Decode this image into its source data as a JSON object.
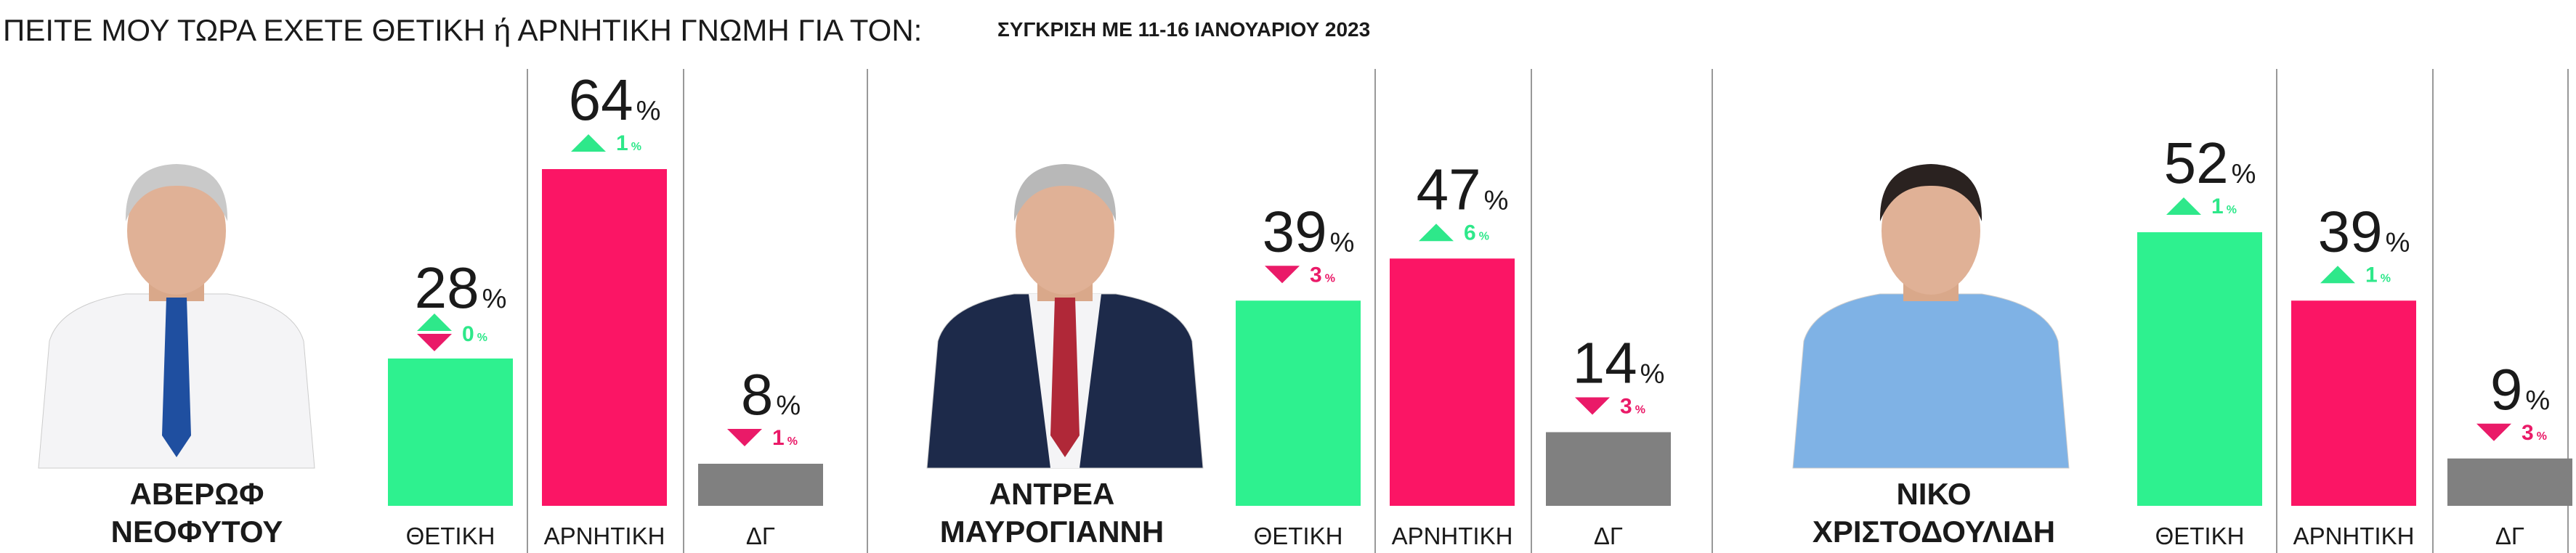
{
  "title": "ΠΕΙΤΕ ΜΟΥ ΤΩΡΑ ΕΧΕΤΕ ΘΕΤΙΚΗ ή ΑΡΝΗΤΙΚΗ ΓΝΩΜΗ ΓΙΑ ΤΟΝ:",
  "subtitle": "ΣΥΓΚΡΙΣΗ ΜΕ 11-16 ΙΑΝΟΥΑΡΙΟΥ 2023",
  "chart_data": [
    {
      "type": "bar",
      "title": [
        "ΑΒΕΡΩΦ",
        "ΝΕΟΦΥΤΟΥ"
      ],
      "categories": [
        "ΘΕΤΙΚΗ",
        "ΑΡΝΗΤΙΚΗ",
        "ΔΓ"
      ],
      "values": [
        28,
        64,
        8
      ],
      "value_labels": [
        "28%",
        "64%",
        "8%"
      ],
      "changes": [
        0,
        1,
        -1
      ],
      "change_labels": [
        "0%",
        "1%",
        "1%"
      ],
      "colors": [
        "#2ef18f",
        "#fb1565",
        "#808080"
      ],
      "ylim": [
        0,
        100
      ]
    },
    {
      "type": "bar",
      "title": [
        "ΑΝΤΡΕΑ",
        "ΜΑΥΡΟΓΙΑΝΝΗ"
      ],
      "categories": [
        "ΘΕΤΙΚΗ",
        "ΑΡΝΗΤΙΚΗ",
        "ΔΓ"
      ],
      "values": [
        39,
        47,
        14
      ],
      "value_labels": [
        "39%",
        "47%",
        "14%"
      ],
      "changes": [
        -3,
        6,
        -3
      ],
      "change_labels": [
        "3%",
        "6%",
        "3%"
      ],
      "colors": [
        "#2ef18f",
        "#fb1565",
        "#808080"
      ],
      "ylim": [
        0,
        100
      ]
    },
    {
      "type": "bar",
      "title": [
        "ΝΙΚΟ",
        "ΧΡΙΣΤΟΔΟΥΛΙΔΗ"
      ],
      "categories": [
        "ΘΕΤΙΚΗ",
        "ΑΡΝΗΤΙΚΗ",
        "ΔΓ"
      ],
      "values": [
        52,
        39,
        9
      ],
      "value_labels": [
        "52%",
        "39%",
        "9%"
      ],
      "changes": [
        1,
        1,
        -3
      ],
      "change_labels": [
        "1%",
        "1%",
        "3%"
      ],
      "colors": [
        "#2ef18f",
        "#fb1565",
        "#808080"
      ],
      "ylim": [
        0,
        100
      ]
    }
  ]
}
